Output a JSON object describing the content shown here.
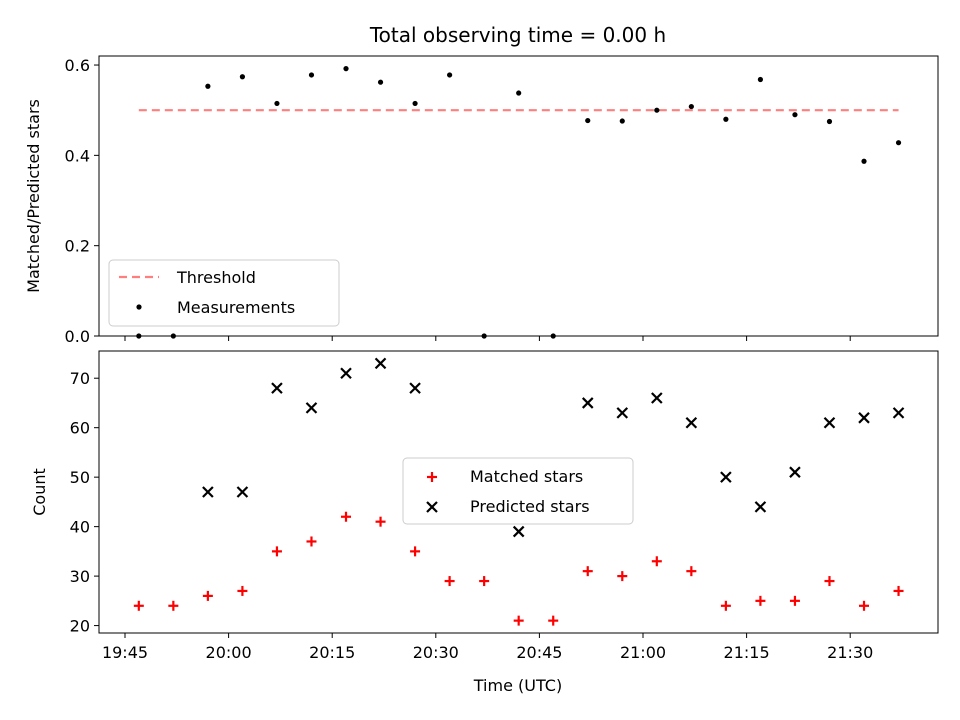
{
  "chart_data": {
    "type": "scatter",
    "title": "Total observing time = 0.00 h",
    "xlabel": "Time (UTC)",
    "x_ticks": [
      "19:45",
      "20:00",
      "20:15",
      "20:30",
      "20:45",
      "21:00",
      "21:15",
      "21:30"
    ],
    "times": [
      "19:47",
      "19:52",
      "19:57",
      "20:02",
      "20:07",
      "20:12",
      "20:17",
      "20:22",
      "20:27",
      "20:32",
      "20:37",
      "20:42",
      "20:47",
      "20:52",
      "20:57",
      "21:02",
      "21:07",
      "21:12",
      "21:17",
      "21:22",
      "21:27",
      "21:32",
      "21:37"
    ],
    "panels": [
      {
        "ylabel": "Matched/Predicted stars",
        "ylim": [
          0,
          0.62
        ],
        "y_ticks": [
          "0.0",
          "0.2",
          "0.4",
          "0.6"
        ],
        "legend_position": "lower-left",
        "threshold": {
          "name": "Threshold",
          "value": 0.5,
          "color": "#ff7f7f"
        },
        "series": [
          {
            "name": "Measurements",
            "color": "#000000",
            "values": [
              0.0,
              0.0,
              0.553,
              0.574,
              0.515,
              0.578,
              0.592,
              0.562,
              0.515,
              0.578,
              0.0,
              0.538,
              0.0,
              0.477,
              0.476,
              0.5,
              0.508,
              0.48,
              0.568,
              0.49,
              0.475,
              0.387,
              0.428
            ]
          }
        ]
      },
      {
        "ylabel": "Count",
        "ylim": [
          18.5,
          75.5
        ],
        "y_ticks": [
          "20",
          "30",
          "40",
          "50",
          "60",
          "70"
        ],
        "legend_position": "center",
        "series": [
          {
            "name": "Matched stars",
            "marker": "plus",
            "color": "#ff0000",
            "values": [
              24,
              24,
              26,
              27,
              35,
              37,
              42,
              41,
              35,
              29,
              29,
              21,
              21,
              31,
              30,
              33,
              31,
              24,
              25,
              25,
              29,
              24,
              27
            ]
          },
          {
            "name": "Predicted stars",
            "marker": "x",
            "color": "#000000",
            "values": [
              null,
              null,
              47,
              47,
              68,
              64,
              71,
              73,
              68,
              null,
              null,
              39,
              null,
              65,
              63,
              66,
              61,
              50,
              44,
              51,
              61,
              62,
              63
            ]
          }
        ]
      }
    ]
  }
}
